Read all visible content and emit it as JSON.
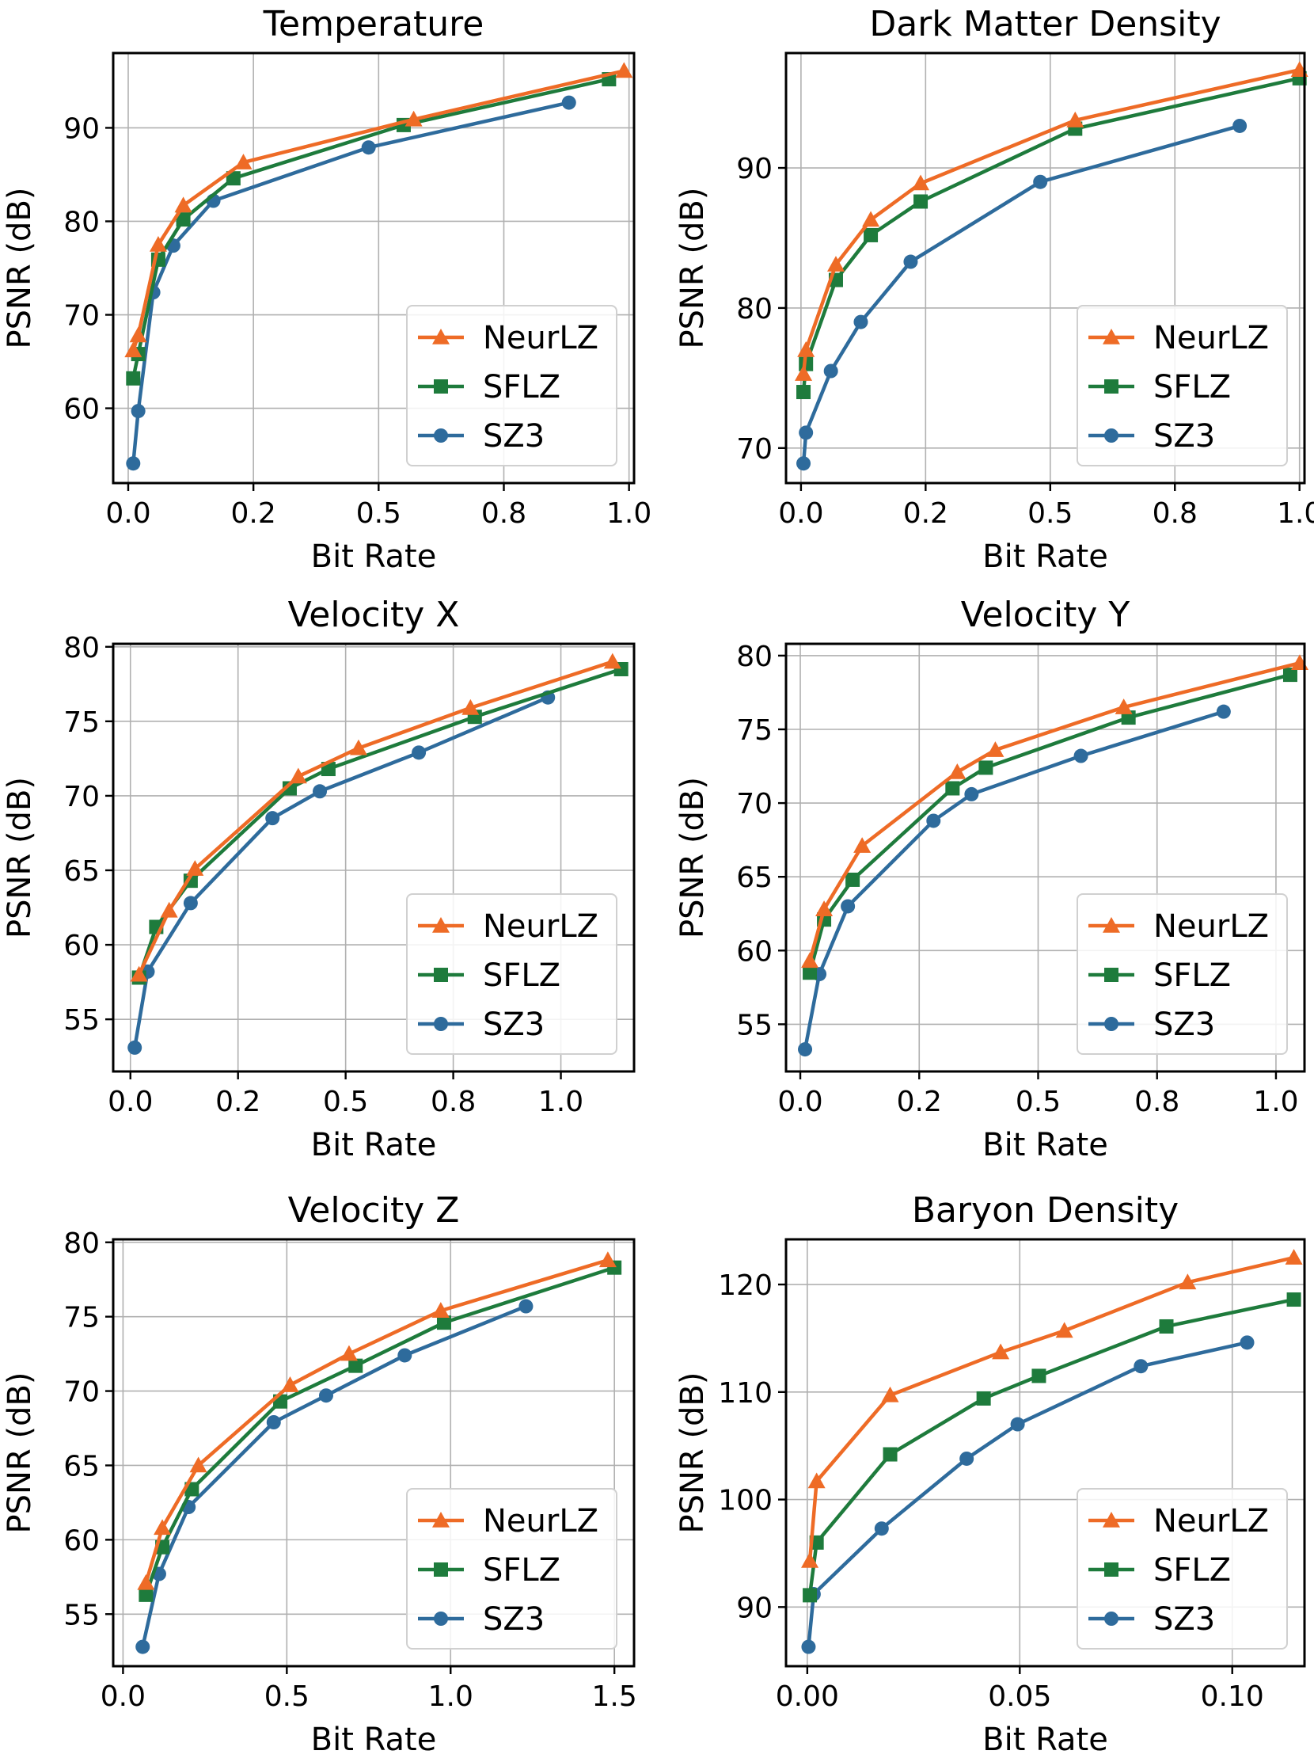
{
  "colors": {
    "NeurLZ": "#ee6b26",
    "SFLZ": "#1e7b3c",
    "SZ3": "#2e6b9c"
  },
  "chart_data": [
    {
      "type": "line",
      "title": "Temperature",
      "xlabel": "Bit Rate",
      "ylabel": "PSNR (dB)",
      "xlim": [
        -0.03,
        1.01
      ],
      "ylim": [
        52,
        98
      ],
      "xticks": [
        0.0,
        0.25,
        0.5,
        0.75,
        1.0
      ],
      "xtick_labels": [
        "0.0",
        "0.2",
        "0.5",
        "0.8",
        "1.0"
      ],
      "yticks": [
        60,
        70,
        80,
        90
      ],
      "ytick_labels": [
        "60",
        "70",
        "80",
        "90"
      ],
      "grid": true,
      "legend": "lower-right",
      "series": [
        {
          "name": "NeurLZ",
          "marker": "triangle",
          "x": [
            0.01,
            0.02,
            0.06,
            0.11,
            0.23,
            0.57,
            0.99
          ],
          "y": [
            66.2,
            67.8,
            77.5,
            81.7,
            86.3,
            90.9,
            96.1
          ]
        },
        {
          "name": "SFLZ",
          "marker": "square",
          "x": [
            0.01,
            0.02,
            0.06,
            0.11,
            0.21,
            0.55,
            0.96
          ],
          "y": [
            63.2,
            65.8,
            75.9,
            80.2,
            84.6,
            90.3,
            95.2
          ]
        },
        {
          "name": "SZ3",
          "marker": "circle",
          "x": [
            0.01,
            0.02,
            0.05,
            0.09,
            0.17,
            0.48,
            0.88
          ],
          "y": [
            54.1,
            59.7,
            72.4,
            77.4,
            82.2,
            87.9,
            92.7
          ]
        }
      ]
    },
    {
      "type": "line",
      "title": "Dark Matter Density",
      "xlabel": "Bit Rate",
      "ylabel": "PSNR (dB)",
      "xlim": [
        -0.03,
        1.01
      ],
      "ylim": [
        67.5,
        98.2
      ],
      "xticks": [
        0.0,
        0.25,
        0.5,
        0.75,
        1.0
      ],
      "xtick_labels": [
        "0.0",
        "0.2",
        "0.5",
        "0.8",
        "1.0"
      ],
      "yticks": [
        70,
        80,
        90
      ],
      "ytick_labels": [
        "70",
        "80",
        "90"
      ],
      "grid": true,
      "legend": "lower-right",
      "series": [
        {
          "name": "NeurLZ",
          "marker": "triangle",
          "x": [
            0.005,
            0.01,
            0.07,
            0.14,
            0.24,
            0.55,
            1.0
          ],
          "y": [
            75.3,
            77.0,
            83.1,
            86.3,
            88.9,
            93.4,
            97.0
          ]
        },
        {
          "name": "SFLZ",
          "marker": "square",
          "x": [
            0.005,
            0.01,
            0.07,
            0.14,
            0.24,
            0.55,
            1.0
          ],
          "y": [
            74.0,
            76.0,
            82.0,
            85.2,
            87.6,
            92.8,
            96.4
          ]
        },
        {
          "name": "SZ3",
          "marker": "circle",
          "x": [
            0.005,
            0.01,
            0.06,
            0.12,
            0.22,
            0.48,
            0.88
          ],
          "y": [
            68.9,
            71.1,
            75.5,
            79.0,
            83.3,
            89.0,
            93.0
          ]
        }
      ]
    },
    {
      "type": "line",
      "title": "Velocity X",
      "xlabel": "Bit Rate",
      "ylabel": "PSNR (dB)",
      "xlim": [
        -0.04,
        1.17
      ],
      "ylim": [
        51.5,
        80.2
      ],
      "xticks": [
        0.0,
        0.25,
        0.5,
        0.75,
        1.0
      ],
      "xtick_labels": [
        "0.0",
        "0.2",
        "0.5",
        "0.8",
        "1.0"
      ],
      "yticks": [
        55,
        60,
        65,
        70,
        75,
        80
      ],
      "ytick_labels": [
        "55",
        "60",
        "65",
        "70",
        "75",
        "80"
      ],
      "grid": true,
      "legend": "lower-right",
      "series": [
        {
          "name": "NeurLZ",
          "marker": "triangle",
          "x": [
            0.02,
            0.09,
            0.15,
            0.39,
            0.53,
            0.79,
            1.12
          ],
          "y": [
            58.0,
            62.3,
            65.1,
            71.3,
            73.2,
            75.9,
            79.0
          ]
        },
        {
          "name": "SFLZ",
          "marker": "square",
          "x": [
            0.02,
            0.06,
            0.14,
            0.37,
            0.46,
            0.8,
            1.14
          ],
          "y": [
            57.8,
            61.2,
            64.3,
            70.5,
            71.8,
            75.3,
            78.5
          ]
        },
        {
          "name": "SZ3",
          "marker": "circle",
          "x": [
            0.01,
            0.04,
            0.14,
            0.33,
            0.44,
            0.67,
            0.97
          ],
          "y": [
            53.1,
            58.2,
            62.8,
            68.5,
            70.3,
            72.9,
            76.6
          ]
        }
      ]
    },
    {
      "type": "line",
      "title": "Velocity Y",
      "xlabel": "Bit Rate",
      "ylabel": "PSNR (dB)",
      "xlim": [
        -0.03,
        1.06
      ],
      "ylim": [
        51.8,
        80.8
      ],
      "xticks": [
        0.0,
        0.25,
        0.5,
        0.75,
        1.0
      ],
      "xtick_labels": [
        "0.0",
        "0.2",
        "0.5",
        "0.8",
        "1.0"
      ],
      "yticks": [
        55,
        60,
        65,
        70,
        75,
        80
      ],
      "ytick_labels": [
        "55",
        "60",
        "65",
        "70",
        "75",
        "80"
      ],
      "grid": true,
      "legend": "lower-right",
      "series": [
        {
          "name": "NeurLZ",
          "marker": "triangle",
          "x": [
            0.02,
            0.05,
            0.13,
            0.33,
            0.41,
            0.68,
            1.05
          ],
          "y": [
            59.3,
            62.8,
            67.1,
            72.1,
            73.6,
            76.5,
            79.5
          ]
        },
        {
          "name": "SFLZ",
          "marker": "square",
          "x": [
            0.02,
            0.05,
            0.11,
            0.32,
            0.39,
            0.69,
            1.03
          ],
          "y": [
            58.5,
            62.1,
            64.8,
            71.0,
            72.4,
            75.8,
            78.7
          ]
        },
        {
          "name": "SZ3",
          "marker": "circle",
          "x": [
            0.01,
            0.04,
            0.1,
            0.28,
            0.36,
            0.59,
            0.89
          ],
          "y": [
            53.3,
            58.4,
            63.0,
            68.8,
            70.6,
            73.2,
            76.2
          ]
        }
      ]
    },
    {
      "type": "line",
      "title": "Velocity Z",
      "xlabel": "Bit Rate",
      "ylabel": "PSNR (dB)",
      "xlim": [
        -0.03,
        1.56
      ],
      "ylim": [
        51.5,
        80.2
      ],
      "xticks": [
        0.0,
        0.5,
        1.0,
        1.5
      ],
      "xtick_labels": [
        "0.0",
        "0.5",
        "1.0",
        "1.5"
      ],
      "yticks": [
        55,
        60,
        65,
        70,
        75,
        80
      ],
      "ytick_labels": [
        "55",
        "60",
        "65",
        "70",
        "75",
        "80"
      ],
      "grid": true,
      "legend": "lower-right",
      "series": [
        {
          "name": "NeurLZ",
          "marker": "triangle",
          "x": [
            0.07,
            0.12,
            0.23,
            0.51,
            0.69,
            0.97,
            1.48
          ],
          "y": [
            57.1,
            60.8,
            65.0,
            70.4,
            72.5,
            75.4,
            78.8
          ]
        },
        {
          "name": "SFLZ",
          "marker": "square",
          "x": [
            0.07,
            0.12,
            0.21,
            0.48,
            0.71,
            0.98,
            1.5
          ],
          "y": [
            56.3,
            59.5,
            63.4,
            69.3,
            71.7,
            74.6,
            78.3
          ]
        },
        {
          "name": "SZ3",
          "marker": "circle",
          "x": [
            0.06,
            0.11,
            0.2,
            0.46,
            0.62,
            0.86,
            1.23
          ],
          "y": [
            52.8,
            57.7,
            62.2,
            67.9,
            69.7,
            72.4,
            75.7
          ]
        }
      ]
    },
    {
      "type": "line",
      "title": "Baryon Density",
      "xlabel": "Bit Rate",
      "ylabel": "PSNR (dB)",
      "xlim": [
        -0.005,
        0.117
      ],
      "ylim": [
        84.5,
        124.2
      ],
      "xticks": [
        0.0,
        0.05,
        0.1
      ],
      "xtick_labels": [
        "0.00",
        "0.05",
        "0.10"
      ],
      "yticks": [
        90,
        100,
        110,
        120
      ],
      "ytick_labels": [
        "90",
        "100",
        "110",
        "120"
      ],
      "grid": true,
      "legend": "lower-right",
      "series": [
        {
          "name": "NeurLZ",
          "marker": "triangle",
          "x": [
            0.0006,
            0.0022,
            0.0195,
            0.0455,
            0.0605,
            0.0895,
            0.1145
          ],
          "y": [
            94.3,
            101.7,
            109.7,
            113.7,
            115.7,
            120.2,
            122.5
          ]
        },
        {
          "name": "SFLZ",
          "marker": "square",
          "x": [
            0.0006,
            0.0022,
            0.0195,
            0.0415,
            0.0545,
            0.0845,
            0.1145
          ],
          "y": [
            91.1,
            96.0,
            104.2,
            109.4,
            111.5,
            116.1,
            118.6
          ]
        },
        {
          "name": "SZ3",
          "marker": "circle",
          "x": [
            0.0003,
            0.0015,
            0.0175,
            0.0375,
            0.0495,
            0.0785,
            0.1035
          ],
          "y": [
            86.3,
            91.2,
            97.3,
            103.8,
            107.0,
            112.4,
            114.6
          ]
        }
      ]
    }
  ]
}
